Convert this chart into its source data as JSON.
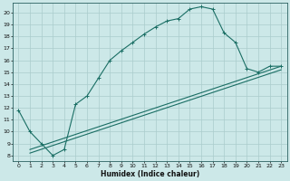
{
  "xlabel": "Humidex (Indice chaleur)",
  "bg_color": "#cce8e8",
  "grid_color": "#aacccc",
  "line_color": "#1a6e64",
  "xlim": [
    -0.5,
    23.5
  ],
  "ylim": [
    7.5,
    20.8
  ],
  "xticks": [
    0,
    1,
    2,
    3,
    4,
    5,
    6,
    7,
    8,
    9,
    10,
    11,
    12,
    13,
    14,
    15,
    16,
    17,
    18,
    19,
    20,
    21,
    22,
    23
  ],
  "yticks": [
    8,
    9,
    10,
    11,
    12,
    13,
    14,
    15,
    16,
    17,
    18,
    19,
    20
  ],
  "line1_x": [
    0,
    1,
    2,
    3,
    4,
    5,
    6,
    7,
    8,
    9,
    10,
    11,
    12,
    13,
    14,
    15,
    16,
    17,
    18,
    19,
    20,
    21,
    22,
    23
  ],
  "line1_y": [
    11.8,
    10.0,
    9.0,
    8.0,
    8.5,
    12.3,
    13.0,
    14.5,
    16.0,
    16.8,
    17.5,
    18.2,
    18.8,
    19.3,
    19.5,
    20.3,
    20.5,
    20.3,
    18.3,
    17.5,
    15.3,
    15.0,
    15.5,
    15.5
  ],
  "line2_x": [
    1,
    23
  ],
  "line2_y": [
    8.5,
    15.5
  ],
  "line3_x": [
    1,
    23
  ],
  "line3_y": [
    8.2,
    15.2
  ]
}
